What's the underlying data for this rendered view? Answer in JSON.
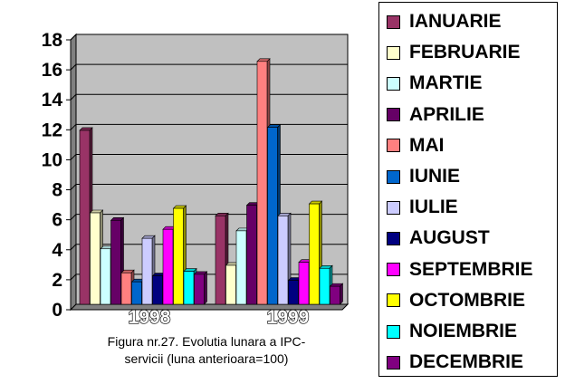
{
  "chart_data": {
    "type": "bar",
    "categories": [
      "1998",
      "1999"
    ],
    "ylim": [
      0,
      18
    ],
    "yticks": [
      0,
      2,
      4,
      6,
      8,
      10,
      12,
      14,
      16,
      18
    ],
    "grid": true,
    "legend_position": "right",
    "series": [
      {
        "name": "IANUARIE",
        "color": "#993366",
        "values": [
          11.6,
          5.9
        ]
      },
      {
        "name": "FEBRUARIE",
        "color": "#FFFFCC",
        "values": [
          6.1,
          2.6
        ]
      },
      {
        "name": "MARTIE",
        "color": "#CCFFFF",
        "values": [
          3.7,
          4.9
        ]
      },
      {
        "name": "APRILIE",
        "color": "#660066",
        "values": [
          5.6,
          6.6
        ]
      },
      {
        "name": "MAI",
        "color": "#FF8080",
        "values": [
          2.1,
          16.2
        ]
      },
      {
        "name": "IUNIE",
        "color": "#0066CC",
        "values": [
          1.5,
          11.8
        ]
      },
      {
        "name": "IULIE",
        "color": "#CCCCFF",
        "values": [
          4.4,
          5.9
        ]
      },
      {
        "name": "AUGUST",
        "color": "#000080",
        "values": [
          1.9,
          1.6
        ]
      },
      {
        "name": "SEPTEMBRIE",
        "color": "#FF00FF",
        "values": [
          5.0,
          2.8
        ]
      },
      {
        "name": "OCTOMBRIE",
        "color": "#FFFF00",
        "values": [
          6.4,
          6.7
        ]
      },
      {
        "name": "NOIEMBRIE",
        "color": "#00FFFF",
        "values": [
          2.2,
          2.4
        ]
      },
      {
        "name": "DECEMBRIE",
        "color": "#800080",
        "values": [
          2.0,
          1.2
        ]
      }
    ]
  },
  "caption": {
    "line1": "Figura nr.27. Evolutia lunara a IPC-",
    "line2": "servicii (luna anterioara=100)"
  }
}
